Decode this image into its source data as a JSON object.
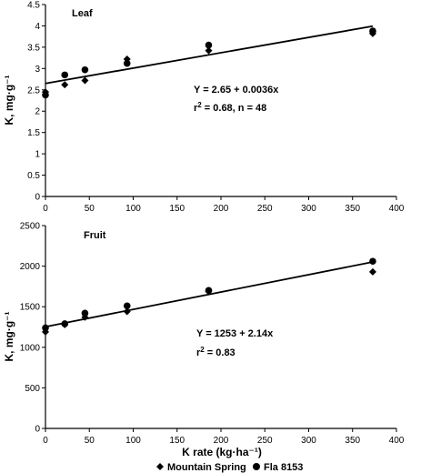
{
  "chart_data": [
    {
      "type": "scatter",
      "panel_label": "Leaf",
      "ylabel": "K, mg·g⁻¹",
      "xlabel": "",
      "xlim": [
        0,
        400
      ],
      "ylim": [
        0,
        4.5
      ],
      "xticks": [
        "0",
        "50",
        "100",
        "150",
        "200",
        "250",
        "300",
        "350",
        "400"
      ],
      "yticks": [
        "0",
        "0.5",
        "1",
        "1.5",
        "2",
        "2.5",
        "3",
        "3.5",
        "4",
        "4.5"
      ],
      "equation": "Y = 2.65 + 0.0036x",
      "stats_prefix": "r",
      "stats_exp": "2",
      "stats_rest": " = 0.68, n = 48",
      "fit": {
        "intercept": 2.65,
        "slope": 0.0036,
        "x_range": [
          0,
          373
        ]
      },
      "series": [
        {
          "name": "Mountain Spring",
          "marker": "diamond",
          "x": [
            0,
            22,
            45,
            93,
            186,
            373
          ],
          "y": [
            2.45,
            2.62,
            2.72,
            3.22,
            3.42,
            3.82
          ]
        },
        {
          "name": "Fla 8153",
          "marker": "circle",
          "x": [
            0,
            22,
            45,
            93,
            186,
            373
          ],
          "y": [
            2.38,
            2.85,
            2.97,
            3.12,
            3.55,
            3.88
          ]
        }
      ]
    },
    {
      "type": "scatter",
      "panel_label": "Fruit",
      "ylabel": "K, mg·g⁻¹",
      "xlabel": "K rate (kg·ha⁻¹)",
      "xlim": [
        0,
        400
      ],
      "ylim": [
        0,
        2500
      ],
      "xticks": [
        "0",
        "50",
        "100",
        "150",
        "200",
        "250",
        "300",
        "350",
        "400"
      ],
      "yticks": [
        "0",
        "500",
        "1000",
        "1500",
        "2000",
        "2500"
      ],
      "equation": "Y = 1253 + 2.14x",
      "stats_prefix": "r",
      "stats_exp": "2",
      "stats_rest": " = 0.83",
      "fit": {
        "intercept": 1253,
        "slope": 2.14,
        "x_range": [
          0,
          373
        ]
      },
      "series": [
        {
          "name": "Mountain Spring",
          "marker": "diamond",
          "x": [
            0,
            22,
            45,
            93,
            186,
            373
          ],
          "y": [
            1190,
            1280,
            1370,
            1440,
            1690,
            1930
          ]
        },
        {
          "name": "Fla 8153",
          "marker": "circle",
          "x": [
            0,
            22,
            45,
            93,
            186,
            373
          ],
          "y": [
            1240,
            1290,
            1420,
            1510,
            1700,
            2060
          ]
        }
      ]
    }
  ],
  "legend": {
    "placement": "bottom-center",
    "items": [
      {
        "name": "Mountain Spring",
        "marker": "diamond"
      },
      {
        "name": "Fla 8153",
        "marker": "circle"
      }
    ]
  }
}
